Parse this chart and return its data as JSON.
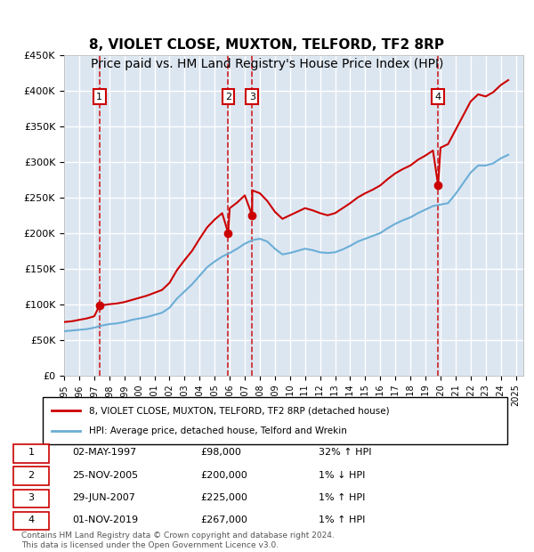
{
  "title": "8, VIOLET CLOSE, MUXTON, TELFORD, TF2 8RP",
  "subtitle": "Price paid vs. HM Land Registry's House Price Index (HPI)",
  "title_fontsize": 11,
  "subtitle_fontsize": 10,
  "background_color": "#ffffff",
  "plot_bg_color": "#dce6f1",
  "grid_color": "#ffffff",
  "ylim": [
    0,
    450000
  ],
  "yticks": [
    0,
    50000,
    100000,
    150000,
    200000,
    250000,
    300000,
    350000,
    400000,
    450000
  ],
  "xlim_start": 1995.0,
  "xlim_end": 2025.5,
  "xticks": [
    1995,
    1996,
    1997,
    1998,
    1999,
    2000,
    2001,
    2002,
    2003,
    2004,
    2005,
    2006,
    2007,
    2008,
    2009,
    2010,
    2011,
    2012,
    2013,
    2014,
    2015,
    2016,
    2017,
    2018,
    2019,
    2020,
    2021,
    2022,
    2023,
    2024,
    2025
  ],
  "sale_dates": [
    1997.35,
    2005.9,
    2007.49,
    2019.84
  ],
  "sale_prices": [
    98000,
    200000,
    225000,
    267000
  ],
  "sale_labels": [
    "1",
    "2",
    "3",
    "4"
  ],
  "hpi_line_color": "#6baed6",
  "price_line_color": "#cc0000",
  "dashed_line_color": "#cc0000",
  "marker_color": "#cc0000",
  "legend_label_price": "8, VIOLET CLOSE, MUXTON, TELFORD, TF2 8RP (detached house)",
  "legend_label_hpi": "HPI: Average price, detached house, Telford and Wrekin",
  "table_data": [
    [
      "1",
      "02-MAY-1997",
      "£98,000",
      "32% ↑ HPI"
    ],
    [
      "2",
      "25-NOV-2005",
      "£200,000",
      "1% ↓ HPI"
    ],
    [
      "3",
      "29-JUN-2007",
      "£225,000",
      "1% ↑ HPI"
    ],
    [
      "4",
      "01-NOV-2019",
      "£267,000",
      "1% ↑ HPI"
    ]
  ],
  "footer_text": "Contains HM Land Registry data © Crown copyright and database right 2024.\nThis data is licensed under the Open Government Licence v3.0.",
  "hpi_data": {
    "years": [
      1995.0,
      1995.5,
      1996.0,
      1996.5,
      1997.0,
      1997.5,
      1998.0,
      1998.5,
      1999.0,
      1999.5,
      2000.0,
      2000.5,
      2001.0,
      2001.5,
      2002.0,
      2002.5,
      2003.0,
      2003.5,
      2004.0,
      2004.5,
      2005.0,
      2005.5,
      2006.0,
      2006.5,
      2007.0,
      2007.5,
      2008.0,
      2008.5,
      2009.0,
      2009.5,
      2010.0,
      2010.5,
      2011.0,
      2011.5,
      2012.0,
      2012.5,
      2013.0,
      2013.5,
      2014.0,
      2014.5,
      2015.0,
      2015.5,
      2016.0,
      2016.5,
      2017.0,
      2017.5,
      2018.0,
      2018.5,
      2019.0,
      2019.5,
      2020.0,
      2020.5,
      2021.0,
      2021.5,
      2022.0,
      2022.5,
      2023.0,
      2023.5,
      2024.0,
      2024.5
    ],
    "values": [
      62000,
      63000,
      64000,
      65000,
      67000,
      70000,
      72000,
      73000,
      75000,
      78000,
      80000,
      82000,
      85000,
      88000,
      95000,
      108000,
      118000,
      128000,
      140000,
      152000,
      160000,
      167000,
      172000,
      178000,
      185000,
      190000,
      192000,
      188000,
      178000,
      170000,
      172000,
      175000,
      178000,
      176000,
      173000,
      172000,
      173000,
      177000,
      182000,
      188000,
      192000,
      196000,
      200000,
      207000,
      213000,
      218000,
      222000,
      228000,
      233000,
      238000,
      240000,
      242000,
      255000,
      270000,
      285000,
      295000,
      295000,
      298000,
      305000,
      310000
    ]
  },
  "price_hpi_data": {
    "years": [
      1995.0,
      1995.5,
      1996.0,
      1996.5,
      1997.0,
      1997.35,
      1997.5,
      1998.0,
      1998.5,
      1999.0,
      1999.5,
      2000.0,
      2000.5,
      2001.0,
      2001.5,
      2002.0,
      2002.5,
      2003.0,
      2003.5,
      2004.0,
      2004.5,
      2005.0,
      2005.5,
      2005.9,
      2006.0,
      2006.5,
      2007.0,
      2007.49,
      2007.5,
      2008.0,
      2008.5,
      2009.0,
      2009.5,
      2010.0,
      2010.5,
      2011.0,
      2011.5,
      2012.0,
      2012.5,
      2013.0,
      2013.5,
      2014.0,
      2014.5,
      2015.0,
      2015.5,
      2016.0,
      2016.5,
      2017.0,
      2017.5,
      2018.0,
      2018.5,
      2019.0,
      2019.5,
      2019.84,
      2020.0,
      2020.5,
      2021.0,
      2021.5,
      2022.0,
      2022.5,
      2023.0,
      2023.5,
      2024.0,
      2024.5
    ],
    "values": [
      75000,
      76000,
      78000,
      80000,
      83000,
      98000,
      98500,
      100000,
      101000,
      103000,
      106000,
      109000,
      112000,
      116000,
      120000,
      130000,
      148000,
      162000,
      175000,
      192000,
      208000,
      219000,
      228000,
      200000,
      235000,
      243000,
      253000,
      225000,
      260000,
      256000,
      245000,
      230000,
      220000,
      225000,
      230000,
      235000,
      232000,
      228000,
      225000,
      228000,
      235000,
      242000,
      250000,
      256000,
      261000,
      267000,
      276000,
      284000,
      290000,
      295000,
      303000,
      309000,
      316000,
      267000,
      320000,
      325000,
      345000,
      365000,
      385000,
      395000,
      392000,
      398000,
      408000,
      415000
    ]
  }
}
